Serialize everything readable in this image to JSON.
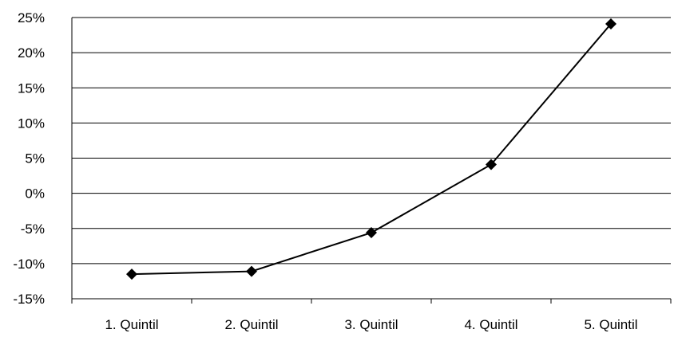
{
  "chart_data": {
    "type": "line",
    "categories": [
      "1. Quintil",
      "2. Quintil",
      "3. Quintil",
      "4. Quintil",
      "5. Quintil"
    ],
    "series": [
      {
        "values": [
          -11.5,
          -11.1,
          -5.6,
          4.1,
          24.1
        ]
      }
    ],
    "ylim": [
      -15,
      25
    ],
    "yticks": [
      -15,
      -10,
      -5,
      0,
      5,
      10,
      15,
      20,
      25
    ],
    "ytick_labels": [
      "-15%",
      "-10%",
      "-5%",
      "0%",
      "5%",
      "10%",
      "15%",
      "20%",
      "25%"
    ],
    "grid": true,
    "legend": "none",
    "colors": {
      "line": "#000000",
      "marker": "#000000",
      "grid": "#000000"
    }
  }
}
